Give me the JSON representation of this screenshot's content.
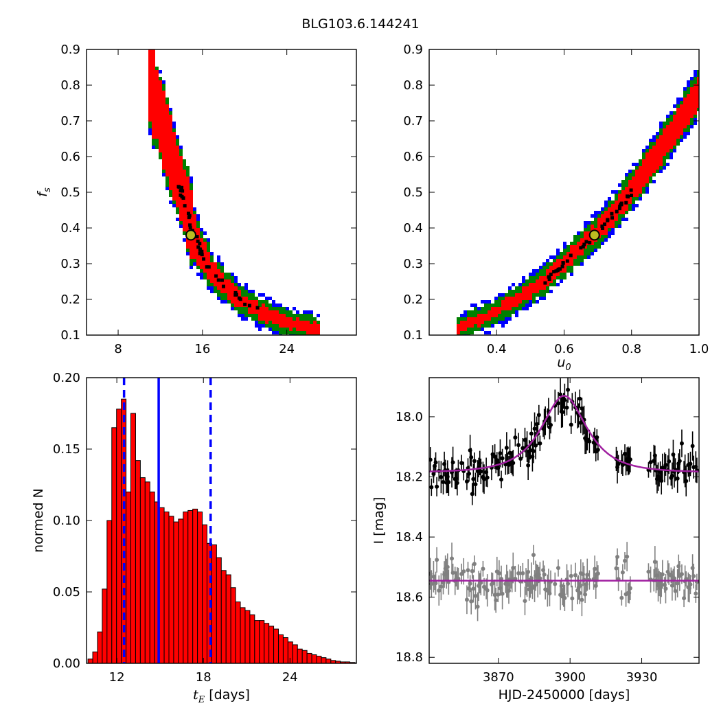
{
  "title": "BLG103.6.144241",
  "chart_data": [
    {
      "type": "heatmap",
      "panel": "top-left",
      "xlabel": "",
      "ylabel": "f_s",
      "xlim": [
        5,
        30.6
      ],
      "ylim": [
        0.1,
        0.9
      ],
      "xticks": [
        8,
        16,
        24
      ],
      "yticks": [
        0.1,
        0.2,
        0.3,
        0.4,
        0.5,
        0.6,
        0.7,
        0.8,
        0.9
      ],
      "ridge": [
        [
          10.8,
          0.85
        ],
        [
          11.5,
          0.76
        ],
        [
          12.3,
          0.68
        ],
        [
          13.0,
          0.6
        ],
        [
          13.8,
          0.52
        ],
        [
          14.5,
          0.45
        ],
        [
          15.0,
          0.39
        ],
        [
          15.7,
          0.34
        ],
        [
          16.8,
          0.28
        ],
        [
          18.0,
          0.24
        ],
        [
          19.5,
          0.2
        ],
        [
          21.5,
          0.165
        ],
        [
          23.5,
          0.14
        ],
        [
          25.5,
          0.125
        ],
        [
          27.0,
          0.115
        ]
      ],
      "levels": [
        {
          "name": "blue",
          "color": "#0000ff"
        },
        {
          "name": "green",
          "color": "#008000"
        },
        {
          "name": "red",
          "color": "#ff0000"
        },
        {
          "name": "black",
          "color": "#000000"
        }
      ],
      "best_fit": {
        "x": 14.9,
        "y": 0.38,
        "color": "#bcbd22"
      }
    },
    {
      "type": "heatmap",
      "panel": "top-right",
      "xlabel": "u_0",
      "ylabel": "",
      "xlim": [
        0.2,
        1.0
      ],
      "ylim": [
        0.1,
        0.9
      ],
      "xticks": [
        0.4,
        0.6,
        0.8,
        1.0
      ],
      "yticks": [
        0.1,
        0.2,
        0.3,
        0.4,
        0.5,
        0.6,
        0.7,
        0.8,
        0.9
      ],
      "ridge": [
        [
          0.28,
          0.115
        ],
        [
          0.33,
          0.135
        ],
        [
          0.4,
          0.165
        ],
        [
          0.47,
          0.205
        ],
        [
          0.54,
          0.25
        ],
        [
          0.6,
          0.3
        ],
        [
          0.66,
          0.355
        ],
        [
          0.7,
          0.39
        ],
        [
          0.76,
          0.455
        ],
        [
          0.82,
          0.53
        ],
        [
          0.88,
          0.61
        ],
        [
          0.94,
          0.695
        ],
        [
          1.0,
          0.78
        ]
      ],
      "best_fit": {
        "x": 0.69,
        "y": 0.38,
        "color": "#bcbd22"
      }
    },
    {
      "type": "bar",
      "panel": "bottom-left",
      "xlabel": "t_E [days]",
      "ylabel": "normed N",
      "xlim": [
        9.9,
        28.6
      ],
      "ylim": [
        0,
        0.2
      ],
      "xticks": [
        12,
        18,
        24
      ],
      "yticks": [
        0.0,
        0.05,
        0.1,
        0.15,
        0.2
      ],
      "bin_start": 10.0,
      "bin_width": 0.33,
      "values": [
        0.003,
        0.008,
        0.022,
        0.052,
        0.1,
        0.165,
        0.178,
        0.185,
        0.12,
        0.175,
        0.142,
        0.13,
        0.127,
        0.12,
        0.113,
        0.109,
        0.106,
        0.103,
        0.099,
        0.101,
        0.106,
        0.107,
        0.108,
        0.106,
        0.097,
        0.084,
        0.083,
        0.074,
        0.065,
        0.062,
        0.053,
        0.043,
        0.039,
        0.037,
        0.034,
        0.03,
        0.03,
        0.028,
        0.026,
        0.024,
        0.02,
        0.018,
        0.015,
        0.013,
        0.01,
        0.009,
        0.007,
        0.006,
        0.005,
        0.004,
        0.003,
        0.002,
        0.0015,
        0.001,
        0.001,
        0.0006,
        0.0004,
        0.0004
      ],
      "bar_color": "#ff0000",
      "median": 14.9,
      "lower": 12.5,
      "upper": 18.5,
      "line_color": "#0000ff"
    },
    {
      "type": "scatter",
      "panel": "bottom-right",
      "xlabel": "HJD-2450000 [days]",
      "ylabel": "I [mag]",
      "xlim": [
        3841,
        3954
      ],
      "ylim": [
        18.82,
        17.87
      ],
      "xticks": [
        3870,
        3900,
        3930
      ],
      "yticks": [
        18.0,
        18.2,
        18.4,
        18.6,
        18.8
      ],
      "model": {
        "t0": 3897.5,
        "u0": 0.69,
        "tE": 14.9,
        "baseline": 18.185,
        "fs": 0.38,
        "color": "#a020a0"
      },
      "residual_offset": 18.545,
      "data_color": "#000000",
      "residual_color": "#808080"
    }
  ]
}
